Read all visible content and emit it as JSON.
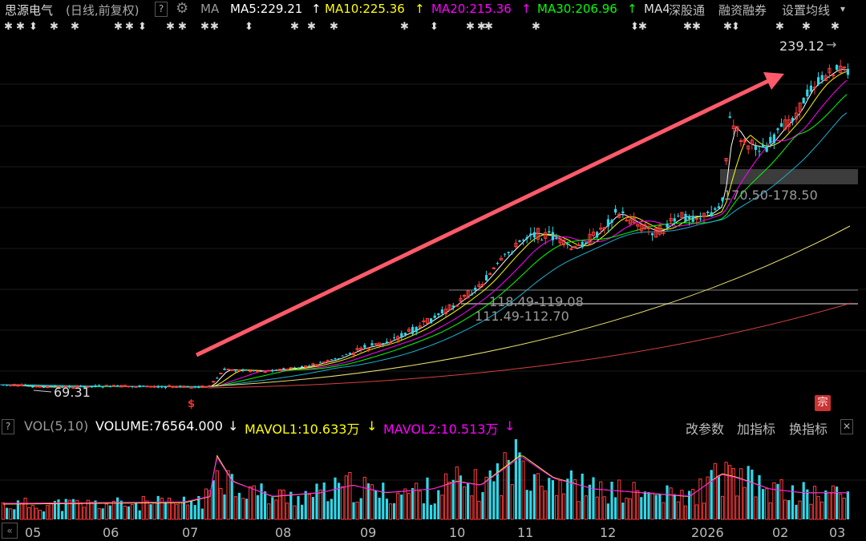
{
  "header": {
    "stock_name": "思源电气",
    "mode": "(日线,前复权)",
    "help": "?",
    "ma_label": "MA",
    "ma5": "MA5:229.21",
    "ma10": "MA10:225.36",
    "ma20": "MA20:215.36",
    "ma30": "MA30:206.96",
    "ma_more": "MA4",
    "arrow": "↑",
    "menu1": "深股通",
    "menu2": "融资融券",
    "menu3": "设置均线",
    "caret": "▾"
  },
  "chart": {
    "high_label": "239.12",
    "low_label": "69.31",
    "zone1": "170.50-178.50",
    "zone2": "118.49-119.08",
    "zone3": "111.49-112.70",
    "dollar_mark": "$",
    "badge": "宗"
  },
  "colors": {
    "up": "#ff3b3b",
    "down": "#2ed8e8",
    "ma5": "#ffffff",
    "ma10": "#ffff00",
    "ma20": "#ff00ff",
    "ma30": "#00ff00",
    "trend_arrow": "#ff5a6a"
  },
  "volume": {
    "help": "?",
    "title": "VOL(5,10)",
    "volume": "VOLUME:76564.000",
    "mavol1": "MAVOL1:10.633万",
    "mavol2": "MAVOL2:10.513万",
    "down_arrow": "↓",
    "btn_params": "改参数",
    "btn_add": "加指标",
    "btn_switch": "换指标",
    "close": "✕"
  },
  "xaxis": {
    "nav": "«",
    "labels": [
      "05",
      "06",
      "07",
      "08",
      "09",
      "10",
      "11",
      "12",
      "2026",
      "02",
      "03"
    ]
  },
  "chart_data": {
    "type": "candlestick",
    "title": "思源电气 (日线,前复权)",
    "period_high": 239.12,
    "period_low": 69.31,
    "price_zones": [
      "170.50-178.50",
      "118.49-119.08",
      "111.49-112.70"
    ],
    "moving_averages": {
      "MA5": 229.21,
      "MA10": 225.36,
      "MA20": 215.36,
      "MA30": 206.96
    },
    "volume": {
      "VOLUME": 76564.0,
      "MAVOL1": "10.633万",
      "MAVOL2": "10.513万"
    },
    "months": [
      "05",
      "06",
      "07",
      "08",
      "09",
      "10",
      "11",
      "12",
      "2026",
      "02",
      "03"
    ]
  }
}
